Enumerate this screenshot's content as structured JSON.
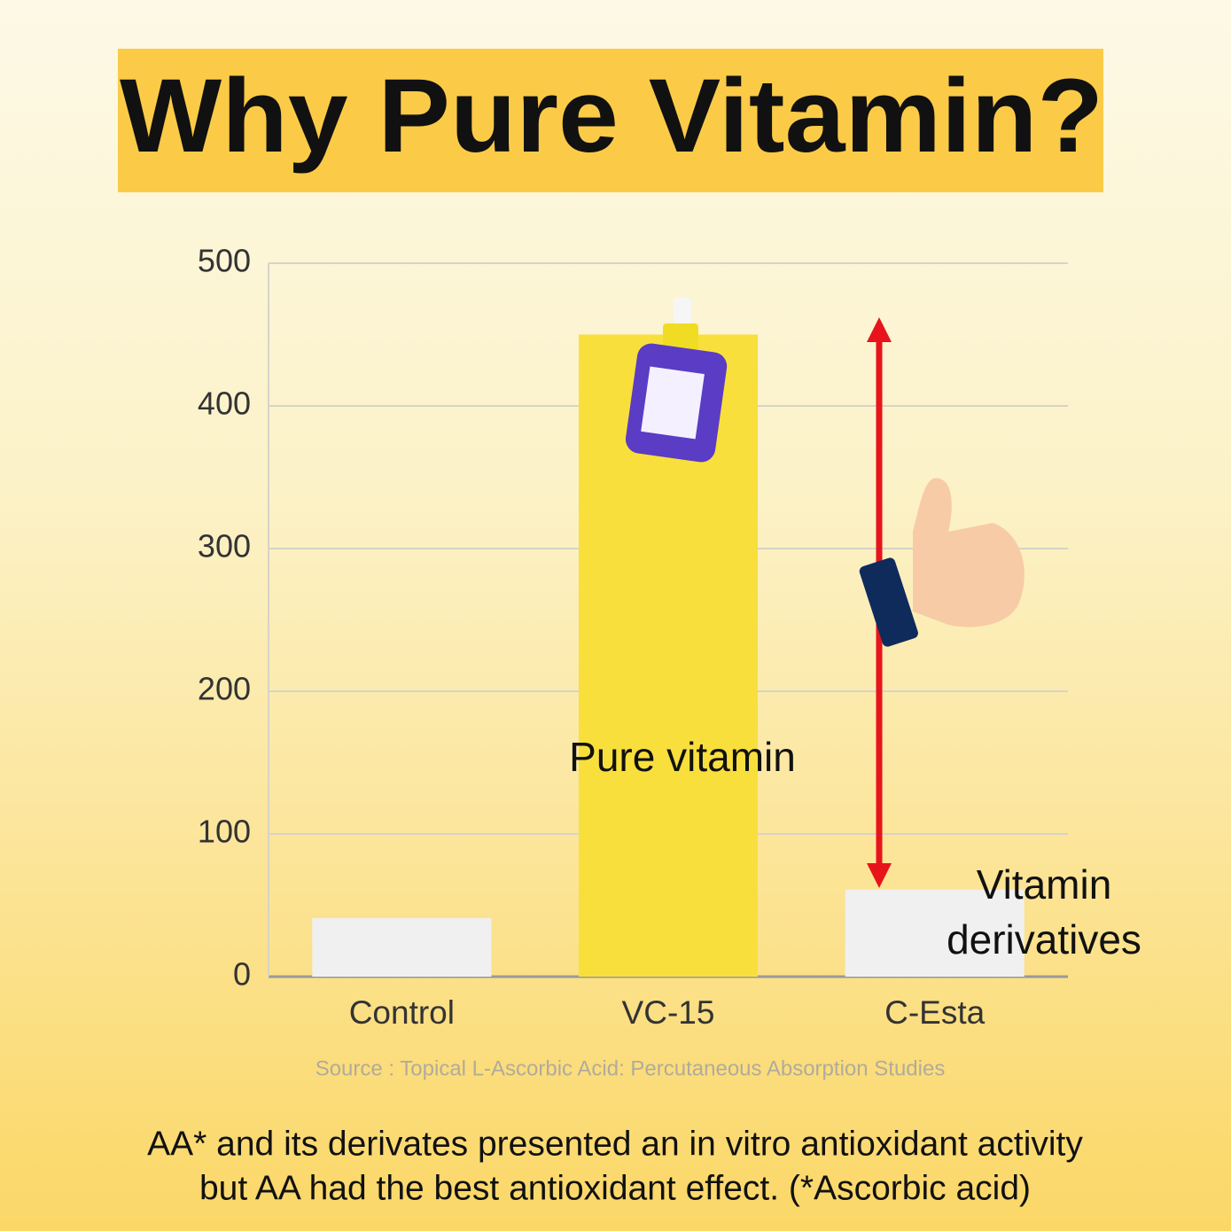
{
  "chart_data": {
    "type": "bar",
    "title": "Why Pure Vitamin?",
    "categories": [
      "Control",
      "VC-15",
      "C-Esta"
    ],
    "values": [
      41,
      450,
      61
    ],
    "colors": [
      "#f0f0f0",
      "#f9df3c",
      "#f0f0f0"
    ],
    "ylim": [
      0,
      500
    ],
    "yticks": [
      0,
      100,
      200,
      300,
      400,
      500
    ],
    "grid": true,
    "bar_annotation": "Pure vitamin",
    "derivative_label": [
      "Vitamin",
      "derivatives"
    ],
    "source": "Source : Topical L-Ascorbic Acid: Percutaneous Absorption Studies",
    "caption": [
      "AA* and its derivates presented an in vitro antioxidant activity",
      "but AA had the best antioxidant effect. (*Ascorbic acid)"
    ]
  }
}
